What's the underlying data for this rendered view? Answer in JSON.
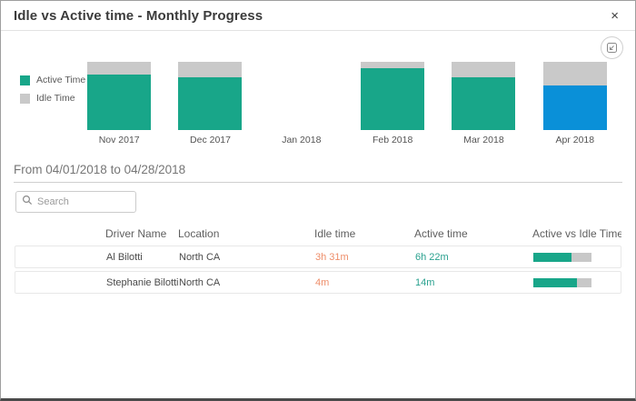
{
  "dialog": {
    "title": "Idle vs Active time - Monthly Progress",
    "close_label": "×"
  },
  "toolbar": {
    "export_icon": "export-chart-icon"
  },
  "legend": {
    "items": [
      {
        "label": "Active Time",
        "color": "#18a689"
      },
      {
        "label": "Idle Time",
        "color": "#c9c9c9"
      }
    ]
  },
  "chart_data": {
    "type": "bar",
    "stacked": true,
    "categories": [
      "Nov 2017",
      "Dec 2017",
      "Jan 2018",
      "Feb 2018",
      "Mar 2018",
      "Apr 2018"
    ],
    "series": [
      {
        "name": "Active Time",
        "color": "#18a689",
        "values_pct": [
          81,
          77,
          0,
          91,
          77,
          65
        ]
      },
      {
        "name": "Idle Time",
        "color": "#c9c9c9",
        "values_pct": [
          19,
          23,
          0,
          9,
          23,
          35
        ]
      }
    ],
    "selected_category": "Apr 2018",
    "selected_active_color": "#0a90d8",
    "legend_position": "left",
    "grid": false,
    "ylabel": "",
    "xlabel": ""
  },
  "period": {
    "label": "From 04/01/2018 to 04/28/2018"
  },
  "search": {
    "placeholder": "Search",
    "value": ""
  },
  "table": {
    "columns": [
      "Driver Name",
      "Location",
      "Idle time",
      "Active time",
      "Active vs Idle Time"
    ],
    "rows": [
      {
        "driver": "Al Bilotti",
        "location": "North CA",
        "idle": "3h 31m",
        "active": "6h 22m",
        "active_pct": 65
      },
      {
        "driver": "Stephanie Bilotti",
        "location": "North CA",
        "idle": "4m",
        "active": "14m",
        "active_pct": 75
      }
    ]
  },
  "colors": {
    "active": "#18a689",
    "idle": "#c9c9c9",
    "selected": "#0a90d8",
    "idle_text": "#ee8e6a",
    "active_text": "#2aa18f"
  }
}
